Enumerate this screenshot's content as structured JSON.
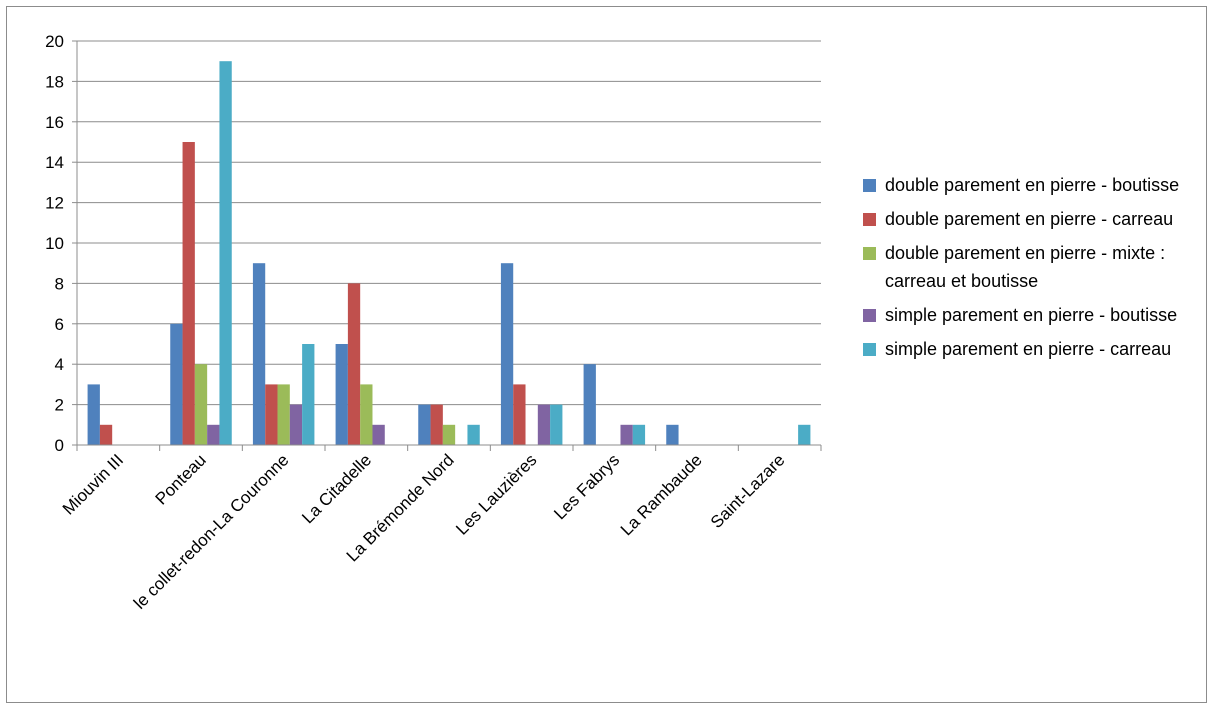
{
  "chart_data": {
    "type": "bar",
    "title": "",
    "xlabel": "",
    "ylabel": "",
    "ylim": [
      0,
      20
    ],
    "yticks": [
      "0",
      "2",
      "4",
      "6",
      "8",
      "10",
      "12",
      "14",
      "16",
      "18",
      "20"
    ],
    "grid": "horizontal",
    "legend_position": "right",
    "categories": [
      "Miouvin III",
      "Ponteau",
      "le collet-redon-La Couronne",
      "La Citadelle",
      "La Brémonde Nord",
      "Les Lauzières",
      "Les Fabrys",
      "La Rambaude",
      "Saint-Lazare"
    ],
    "series": [
      {
        "name": "double parement en pierre - boutisse",
        "color": "#4f81bd",
        "values": [
          3,
          6,
          9,
          5,
          2,
          9,
          4,
          1,
          0
        ]
      },
      {
        "name": "double parement en pierre - carreau",
        "color": "#c0504d",
        "values": [
          1,
          15,
          3,
          8,
          2,
          3,
          0,
          0,
          0
        ]
      },
      {
        "name": "double parement en pierre - mixte : carreau et boutisse",
        "color": "#9bbb59",
        "values": [
          0,
          4,
          3,
          3,
          1,
          0,
          0,
          0,
          0
        ]
      },
      {
        "name": "simple parement en pierre - boutisse",
        "color": "#8064a2",
        "values": [
          0,
          1,
          2,
          1,
          0,
          2,
          1,
          0,
          0
        ]
      },
      {
        "name": "simple parement en pierre - carreau",
        "color": "#4bacc6",
        "values": [
          0,
          19,
          5,
          0,
          1,
          2,
          1,
          0,
          1
        ]
      }
    ]
  }
}
